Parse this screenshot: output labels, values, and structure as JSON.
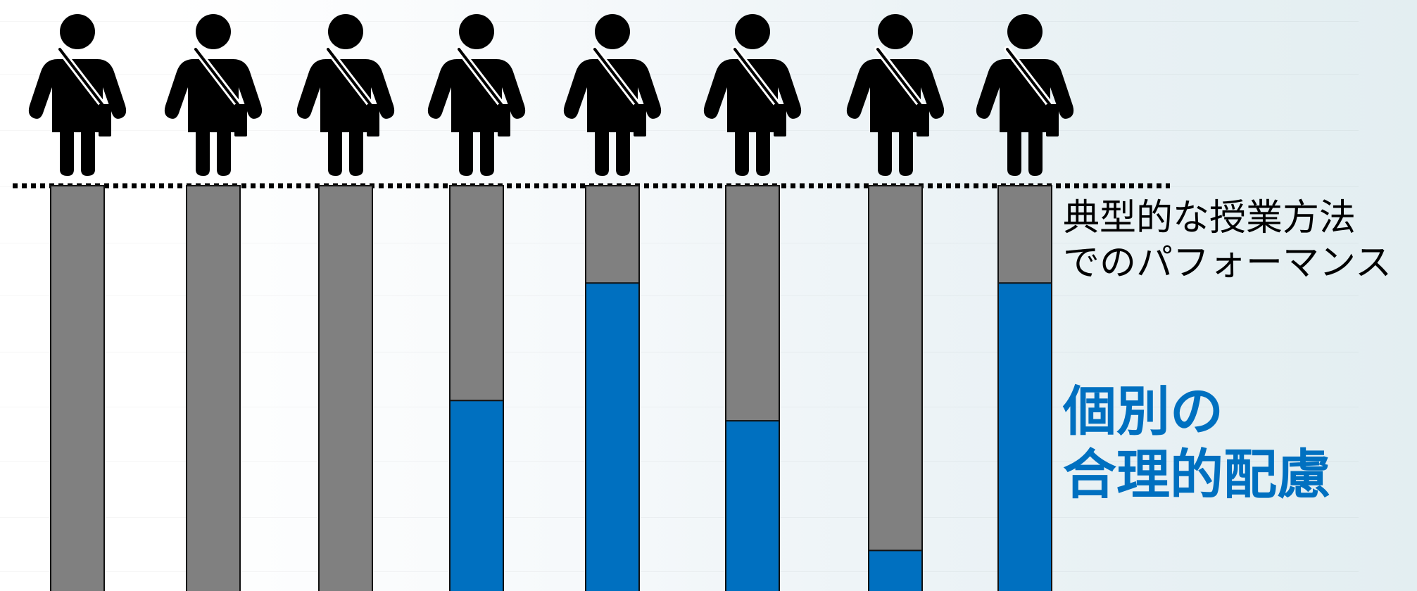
{
  "labels": {
    "typical_performance": [
      "典型的な授業方法",
      "でのパフォーマンス"
    ],
    "individual_accommodation": [
      "個別の",
      "合理的配慮"
    ]
  },
  "colors": {
    "gray": "#808080",
    "blue": "#0070c0",
    "person": "#000000",
    "outline": "#111111"
  },
  "icons": {
    "person": "person-with-shoulder-bag-icon"
  },
  "people": [
    {
      "blue_fraction": 0.0
    },
    {
      "blue_fraction": 0.0
    },
    {
      "blue_fraction": 0.0
    },
    {
      "blue_fraction": 0.47
    },
    {
      "blue_fraction": 0.76
    },
    {
      "blue_fraction": 0.42
    },
    {
      "blue_fraction": 0.1
    },
    {
      "blue_fraction": 0.76
    }
  ]
}
